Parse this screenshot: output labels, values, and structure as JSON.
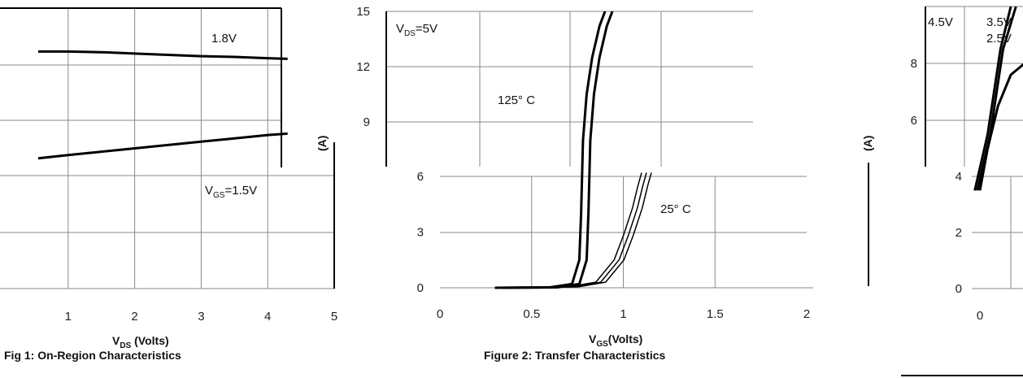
{
  "chart_data": [
    {
      "type": "line",
      "title": "Fig 1: On-Region Characteristics",
      "xlabel_main": "V",
      "xlabel_sub": "DS",
      "xlabel_rest": " (Volts)",
      "ylabel_fragment": "(A)",
      "x_ticks": [
        "1",
        "2",
        "3",
        "4",
        "5"
      ],
      "xlim": [
        0.55,
        5
      ],
      "ylim": [
        0,
        4.2
      ],
      "grid": true,
      "series": [
        {
          "name": "1.8V",
          "x": [
            0.55,
            1,
            1.5,
            2,
            2.5,
            3,
            3.5,
            4,
            4.3
          ],
          "y": [
            3.55,
            3.55,
            3.54,
            3.52,
            3.5,
            3.48,
            3.47,
            3.45,
            3.44
          ]
        },
        {
          "name": "V",
          "name_sub": "GS",
          "name_rest": "=1.5V",
          "x": [
            0.55,
            1,
            1.5,
            2,
            2.5,
            3,
            3.5,
            4,
            4.3
          ],
          "y": [
            1.95,
            2.0,
            2.05,
            2.1,
            2.15,
            2.2,
            2.25,
            2.3,
            2.32
          ]
        }
      ]
    },
    {
      "type": "line",
      "title": "Figure 2: Transfer Characteristics",
      "xlabel_main": "V",
      "xlabel_sub": "GS",
      "xlabel_rest": "(Volts)",
      "annotation_main": "V",
      "annotation_sub": "DS",
      "annotation_rest": "=5V",
      "x_ticks": [
        "0",
        "0.5",
        "1",
        "1.5",
        "2"
      ],
      "y_ticks_upper": [
        "9",
        "12",
        "15"
      ],
      "y_ticks_lower": [
        "0",
        "3",
        "6"
      ],
      "xlim": [
        0,
        2
      ],
      "ylim": [
        0,
        15
      ],
      "grid": true,
      "series": [
        {
          "name": "125° C",
          "x": [
            0.3,
            0.6,
            0.72,
            0.76,
            0.77,
            0.78,
            0.8,
            0.83,
            0.87,
            0.9
          ],
          "y": [
            0,
            0.02,
            0.2,
            1.5,
            4,
            8,
            10.5,
            12.5,
            14.2,
            15
          ]
        },
        {
          "name": "25° C",
          "x": [
            0.3,
            0.7,
            0.85,
            0.95,
            1.0,
            1.05,
            1.08,
            1.1
          ],
          "y": [
            0,
            0.05,
            0.3,
            1.5,
            2.8,
            4.3,
            5.5,
            6.2
          ]
        }
      ]
    },
    {
      "type": "line",
      "title": "",
      "ylabel_fragment": "(A)",
      "x_ticks": [
        "0"
      ],
      "y_ticks": [
        "0",
        "2",
        "4",
        "6",
        "8"
      ],
      "xlim": [
        0,
        0.3
      ],
      "ylim": [
        0,
        10
      ],
      "grid": true,
      "series": [
        {
          "name": "4.5V",
          "x": [
            -0.02,
            0.03,
            0.08,
            0.12
          ],
          "y": [
            3.5,
            5.5,
            8.5,
            10
          ]
        },
        {
          "name": "3.5V",
          "x": [
            -0.01,
            0.04,
            0.09,
            0.14
          ],
          "y": [
            3.5,
            5.5,
            8.5,
            10
          ]
        },
        {
          "name": "2.5V",
          "x": [
            0.0,
            0.03,
            0.07,
            0.12,
            0.2,
            0.3
          ],
          "y": [
            3.5,
            5.0,
            6.5,
            7.6,
            8.2,
            8.4
          ]
        }
      ]
    }
  ]
}
